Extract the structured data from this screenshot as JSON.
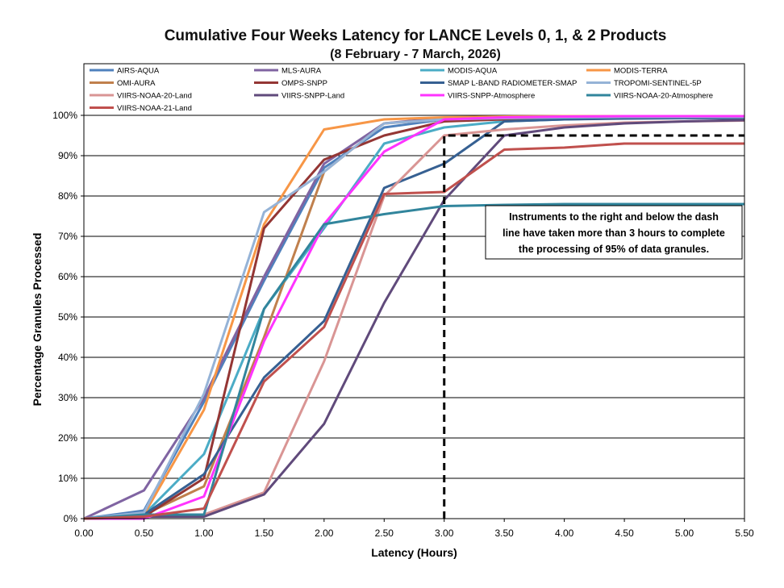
{
  "chart_data": {
    "type": "line",
    "title": "Cumulative Four Weeks Latency  for LANCE Levels 0, 1, & 2 Products",
    "subtitle": "(8  February   -  7  March,  2026)",
    "xlabel": "Latency (Hours)",
    "ylabel": "Percentage Granules Processed",
    "xlim": [
      0,
      5.5
    ],
    "ylim": [
      0,
      100
    ],
    "x": [
      0.0,
      0.5,
      1.0,
      1.5,
      2.0,
      2.5,
      3.0,
      3.5,
      4.0,
      4.5,
      5.0,
      5.5
    ],
    "x_tick_labels": [
      "0.00",
      "0.50",
      "1.00",
      "1.50",
      "2.00",
      "2.50",
      "3.00",
      "3.50",
      "4.00",
      "4.50",
      "5.00",
      "5.50"
    ],
    "y_ticks": [
      0,
      10,
      20,
      30,
      40,
      50,
      60,
      70,
      80,
      90,
      100
    ],
    "y_tick_labels": [
      "0%",
      "10%",
      "20%",
      "30%",
      "40%",
      "50%",
      "60%",
      "70%",
      "80%",
      "90%",
      "100%"
    ],
    "grid": "horizontal",
    "legend_position": "top",
    "series": [
      {
        "name": "AIRS-AQUA",
        "color": "#4f81bd",
        "values": [
          0,
          2,
          29,
          59,
          87,
          97,
          99,
          99.5,
          99.7,
          99.8,
          99.8,
          99.8
        ]
      },
      {
        "name": "MLS-AURA",
        "color": "#8064a2",
        "values": [
          0,
          7,
          30,
          60,
          88,
          98,
          99.4,
          99.6,
          99.7,
          99.8,
          99.8,
          99.8
        ]
      },
      {
        "name": "MODIS-AQUA",
        "color": "#4bacc6",
        "values": [
          0,
          1,
          16,
          52,
          72,
          93,
          97,
          98.5,
          99,
          99.3,
          99.5,
          99.6
        ]
      },
      {
        "name": "MODIS-TERRA",
        "color": "#f79646",
        "values": [
          0,
          1,
          27,
          73,
          96.5,
          99,
          99.5,
          99.7,
          99.8,
          99.8,
          99.8,
          99.8
        ]
      },
      {
        "name": "OMI-AURA",
        "color": "#c0804d",
        "values": [
          0,
          1,
          8,
          45,
          86,
          98,
          99,
          99.5,
          99.6,
          99.7,
          99.7,
          99.7
        ]
      },
      {
        "name": "OMPS-SNPP",
        "color": "#943634",
        "values": [
          0,
          0.5,
          10,
          72,
          89,
          95,
          98.5,
          99,
          99.2,
          99.3,
          99.3,
          99.3
        ]
      },
      {
        "name": "SMAP L-BAND RADIOMETER-SMAP",
        "color": "#366092",
        "values": [
          0,
          1,
          11,
          35,
          49,
          82,
          88,
          98.5,
          99,
          99.2,
          99.3,
          99.3
        ]
      },
      {
        "name": "TROPOMI-SENTINEL-5P",
        "color": "#95b3d7",
        "values": [
          0,
          1.5,
          31,
          76,
          86,
          98,
          99,
          99.3,
          99.5,
          99.6,
          99.6,
          99.6
        ]
      },
      {
        "name": "VIIRS-NOAA-20-Land",
        "color": "#d99594",
        "values": [
          0,
          0.5,
          1,
          6.5,
          39,
          80,
          95,
          96.5,
          97.5,
          98.2,
          98.5,
          98.7
        ]
      },
      {
        "name": "VIIRS-SNPP-Land",
        "color": "#604a7b",
        "values": [
          0,
          0.5,
          0.5,
          6,
          23.5,
          53.5,
          79,
          95,
          97,
          98,
          98.5,
          98.8
        ]
      },
      {
        "name": "VIIRS-SNPP-Atmosphere",
        "color": "#ff33ff",
        "values": [
          0,
          0,
          5.5,
          44,
          73,
          91,
          99,
          99.5,
          99.7,
          99.8,
          99.8,
          99.8
        ]
      },
      {
        "name": "VIIRS-NOAA-20-Atmosphere",
        "color": "#31859c",
        "values": [
          0,
          1,
          1,
          52,
          73,
          75.5,
          77.5,
          77.8,
          78,
          78,
          78,
          78
        ]
      },
      {
        "name": "VIIRS-NOAA-21-Land",
        "color": "#c0504d",
        "values": [
          0,
          0.5,
          2.5,
          34,
          47.5,
          80.5,
          81,
          91.5,
          92,
          93,
          93,
          93
        ]
      }
    ],
    "threshold": {
      "x": 3.0,
      "y": 95,
      "style": "dashed",
      "color": "#000000"
    },
    "annotation": {
      "text": [
        "Instruments to the right and below the dash",
        "line have taken more than 3 hours to complete",
        "the processing of 95% of data granules."
      ]
    }
  }
}
